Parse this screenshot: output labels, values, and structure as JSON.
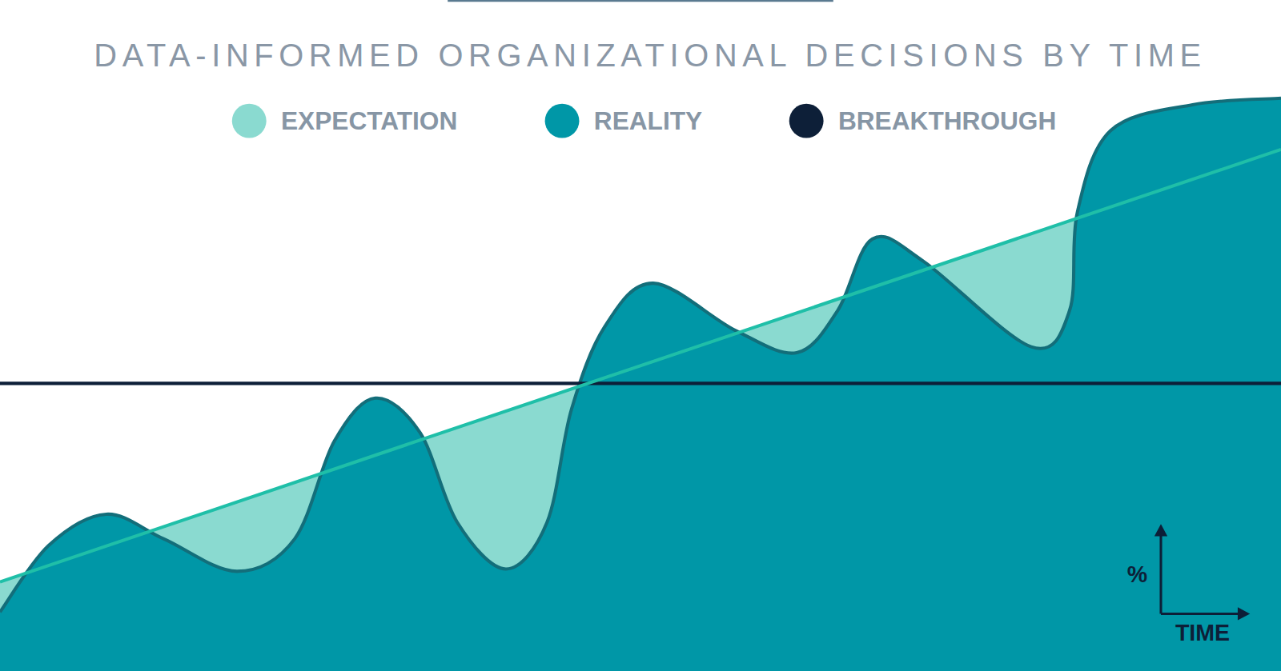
{
  "chart_data": {
    "type": "area",
    "title": "DATA-INFORMED ORGANIZATIONAL DECISIONS BY TIME",
    "x_label": "TIME",
    "y_label": "%",
    "xlim": [
      0,
      100
    ],
    "ylim": [
      0,
      100
    ],
    "tick_labels": false,
    "grid": false,
    "legend": "top",
    "series": [
      {
        "name": "EXPECTATION",
        "color": "#8adad0",
        "type": "line",
        "x": [
          0,
          100
        ],
        "values": [
          15.1,
          88.5
        ]
      },
      {
        "name": "REALITY",
        "color": "#0097a7",
        "type": "area",
        "x": [
          0,
          3.8,
          8.3,
          12.8,
          18.5,
          23,
          26.1,
          29.3,
          32.8,
          35.7,
          39.5,
          42.7,
          44.6,
          47.2,
          51,
          57.4,
          62.2,
          65.4,
          68.1,
          72.1,
          80.5,
          83.5,
          84.1,
          86.7,
          93.1,
          100
        ],
        "values": [
          10,
          21.3,
          26.6,
          22.4,
          16.9,
          22.4,
          39,
          46.3,
          40.4,
          25.2,
          17.3,
          25.2,
          44.3,
          58.4,
          65.8,
          57.8,
          54,
          61.2,
          73.3,
          69.5,
          55,
          61.2,
          77.8,
          91.7,
          96.1,
          97.2
        ]
      },
      {
        "name": "BREAKTHROUGH",
        "color": "#0d1f38",
        "type": "line",
        "x": [
          0,
          100
        ],
        "values": [
          48.8,
          48.8
        ]
      }
    ]
  }
}
